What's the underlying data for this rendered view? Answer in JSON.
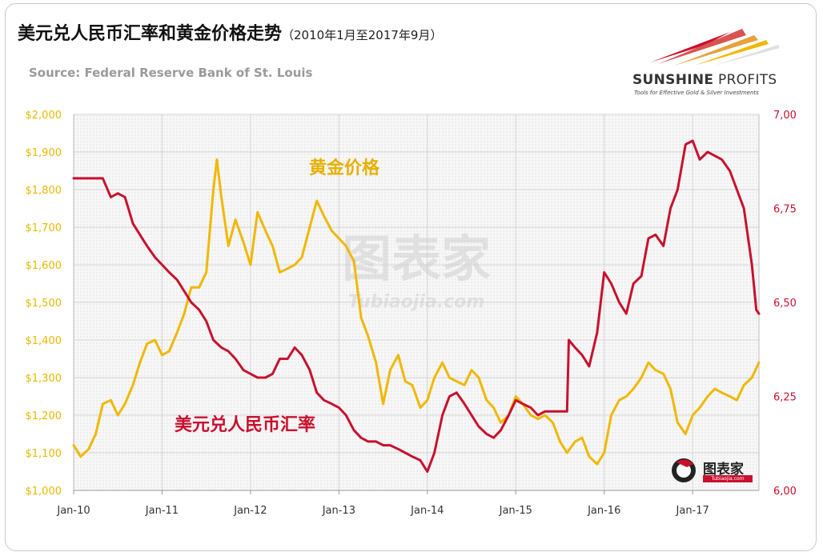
{
  "title": "美元兑人民币汇率和黄金价格走势",
  "subtitle": "（2010年1月至2017年9月）",
  "source": "Source: Federal Reserve Bank of St. Louis",
  "logo": {
    "name_bold": "SUNSHINE",
    "name_light": " PROFITS",
    "tagline": "Tools for Effective Gold & Silver Investments"
  },
  "watermark": {
    "main": "图表家",
    "sub": "Tubiaojia.com"
  },
  "colors": {
    "gold": "#F0B800",
    "usd": "#C8102E",
    "grid": "#d4d4d4",
    "plot_bg": "#f3f3f3"
  },
  "chart_data": {
    "type": "line",
    "x_range": [
      2010.0,
      2017.75
    ],
    "x_ticks": [
      {
        "label": "Jan-10",
        "x": 2010.0
      },
      {
        "label": "Jan-11",
        "x": 2011.0
      },
      {
        "label": "Jan-12",
        "x": 2012.0
      },
      {
        "label": "Jan-13",
        "x": 2013.0
      },
      {
        "label": "Jan-14",
        "x": 2014.0
      },
      {
        "label": "Jan-15",
        "x": 2015.0
      },
      {
        "label": "Jan-16",
        "x": 2016.0
      },
      {
        "label": "Jan-17",
        "x": 2017.0
      }
    ],
    "y_left": {
      "range": [
        1000,
        2000
      ],
      "ticks": [
        {
          "label": "$2,000",
          "v": 2000
        },
        {
          "label": "$1,900",
          "v": 1900
        },
        {
          "label": "$1,800",
          "v": 1800
        },
        {
          "label": "$1,700",
          "v": 1700
        },
        {
          "label": "$1,600",
          "v": 1600
        },
        {
          "label": "$1,500",
          "v": 1500
        },
        {
          "label": "$1,400",
          "v": 1400
        },
        {
          "label": "$1,300",
          "v": 1300
        },
        {
          "label": "$1,200",
          "v": 1200
        },
        {
          "label": "$1,100",
          "v": 1100
        },
        {
          "label": "$1,000",
          "v": 1000
        }
      ]
    },
    "y_right": {
      "range": [
        6.0,
        7.0
      ],
      "ticks": [
        {
          "label": "7,00",
          "v": 7.0
        },
        {
          "label": "6,75",
          "v": 6.75
        },
        {
          "label": "6,50",
          "v": 6.5
        },
        {
          "label": "6,25",
          "v": 6.25
        },
        {
          "label": "6,00",
          "v": 6.0
        }
      ]
    },
    "series": [
      {
        "name": "黄金价格",
        "axis": "left",
        "color": "#F0B800",
        "label": "黄金价格",
        "x": [
          2010.0,
          2010.08,
          2010.17,
          2010.25,
          2010.33,
          2010.42,
          2010.5,
          2010.58,
          2010.67,
          2010.75,
          2010.83,
          2010.92,
          2011.0,
          2011.08,
          2011.17,
          2011.25,
          2011.33,
          2011.42,
          2011.5,
          2011.58,
          2011.62,
          2011.67,
          2011.75,
          2011.83,
          2011.92,
          2012.0,
          2012.08,
          2012.17,
          2012.25,
          2012.33,
          2012.42,
          2012.5,
          2012.58,
          2012.67,
          2012.75,
          2012.83,
          2012.92,
          2013.0,
          2013.08,
          2013.17,
          2013.25,
          2013.33,
          2013.42,
          2013.5,
          2013.58,
          2013.67,
          2013.75,
          2013.83,
          2013.92,
          2014.0,
          2014.08,
          2014.17,
          2014.25,
          2014.33,
          2014.42,
          2014.5,
          2014.58,
          2014.67,
          2014.75,
          2014.83,
          2014.92,
          2015.0,
          2015.08,
          2015.17,
          2015.25,
          2015.33,
          2015.42,
          2015.5,
          2015.58,
          2015.67,
          2015.75,
          2015.83,
          2015.92,
          2016.0,
          2016.08,
          2016.17,
          2016.25,
          2016.33,
          2016.42,
          2016.5,
          2016.58,
          2016.67,
          2016.75,
          2016.83,
          2016.92,
          2017.0,
          2017.08,
          2017.17,
          2017.25,
          2017.33,
          2017.42,
          2017.5,
          2017.58,
          2017.67,
          2017.75
        ],
        "values": [
          1120,
          1090,
          1110,
          1150,
          1230,
          1240,
          1200,
          1230,
          1280,
          1340,
          1390,
          1400,
          1360,
          1370,
          1420,
          1470,
          1540,
          1540,
          1580,
          1800,
          1880,
          1780,
          1650,
          1720,
          1660,
          1600,
          1740,
          1690,
          1650,
          1580,
          1590,
          1600,
          1620,
          1700,
          1770,
          1730,
          1690,
          1670,
          1650,
          1610,
          1460,
          1410,
          1340,
          1230,
          1320,
          1360,
          1290,
          1280,
          1220,
          1240,
          1300,
          1340,
          1300,
          1290,
          1280,
          1320,
          1300,
          1240,
          1220,
          1180,
          1200,
          1250,
          1230,
          1200,
          1190,
          1200,
          1180,
          1130,
          1100,
          1130,
          1140,
          1090,
          1070,
          1100,
          1200,
          1240,
          1250,
          1270,
          1300,
          1340,
          1320,
          1310,
          1270,
          1180,
          1150,
          1200,
          1220,
          1250,
          1270,
          1260,
          1250,
          1240,
          1280,
          1300,
          1340
        ]
      },
      {
        "name": "美元兑人民币汇率",
        "axis": "right",
        "color": "#C8102E",
        "label": "美元兑人民币汇率",
        "x": [
          2010.0,
          2010.08,
          2010.17,
          2010.25,
          2010.33,
          2010.42,
          2010.5,
          2010.58,
          2010.67,
          2010.75,
          2010.83,
          2010.92,
          2011.0,
          2011.08,
          2011.17,
          2011.25,
          2011.33,
          2011.42,
          2011.5,
          2011.58,
          2011.67,
          2011.75,
          2011.83,
          2011.92,
          2012.0,
          2012.08,
          2012.17,
          2012.25,
          2012.33,
          2012.42,
          2012.5,
          2012.58,
          2012.67,
          2012.75,
          2012.83,
          2012.92,
          2013.0,
          2013.08,
          2013.17,
          2013.25,
          2013.33,
          2013.42,
          2013.5,
          2013.58,
          2013.67,
          2013.75,
          2013.83,
          2013.92,
          2014.0,
          2014.08,
          2014.17,
          2014.25,
          2014.33,
          2014.42,
          2014.5,
          2014.58,
          2014.67,
          2014.75,
          2014.83,
          2014.92,
          2015.0,
          2015.08,
          2015.17,
          2015.25,
          2015.33,
          2015.42,
          2015.5,
          2015.58,
          2015.6,
          2015.67,
          2015.75,
          2015.83,
          2015.92,
          2016.0,
          2016.08,
          2016.17,
          2016.25,
          2016.33,
          2016.42,
          2016.5,
          2016.58,
          2016.67,
          2016.75,
          2016.83,
          2016.92,
          2017.0,
          2017.08,
          2017.17,
          2017.25,
          2017.33,
          2017.42,
          2017.5,
          2017.58,
          2017.67,
          2017.72,
          2017.75
        ],
        "values": [
          6.83,
          6.83,
          6.83,
          6.83,
          6.83,
          6.78,
          6.79,
          6.78,
          6.71,
          6.68,
          6.65,
          6.62,
          6.6,
          6.58,
          6.56,
          6.53,
          6.5,
          6.48,
          6.45,
          6.4,
          6.38,
          6.37,
          6.35,
          6.32,
          6.31,
          6.3,
          6.3,
          6.31,
          6.35,
          6.35,
          6.38,
          6.36,
          6.32,
          6.26,
          6.24,
          6.23,
          6.22,
          6.2,
          6.16,
          6.14,
          6.13,
          6.13,
          6.12,
          6.12,
          6.11,
          6.1,
          6.09,
          6.08,
          6.05,
          6.1,
          6.2,
          6.25,
          6.26,
          6.23,
          6.2,
          6.17,
          6.15,
          6.14,
          6.16,
          6.2,
          6.24,
          6.23,
          6.22,
          6.2,
          6.21,
          6.21,
          6.21,
          6.21,
          6.4,
          6.38,
          6.36,
          6.33,
          6.42,
          6.58,
          6.55,
          6.5,
          6.47,
          6.55,
          6.57,
          6.67,
          6.68,
          6.65,
          6.75,
          6.8,
          6.92,
          6.93,
          6.88,
          6.9,
          6.89,
          6.88,
          6.85,
          6.8,
          6.75,
          6.6,
          6.48,
          6.47
        ]
      }
    ],
    "annotations": [
      {
        "text": "黄金价格",
        "color": "#F0B800"
      },
      {
        "text": "美元兑人民币汇率",
        "color": "#C8102E"
      }
    ]
  }
}
